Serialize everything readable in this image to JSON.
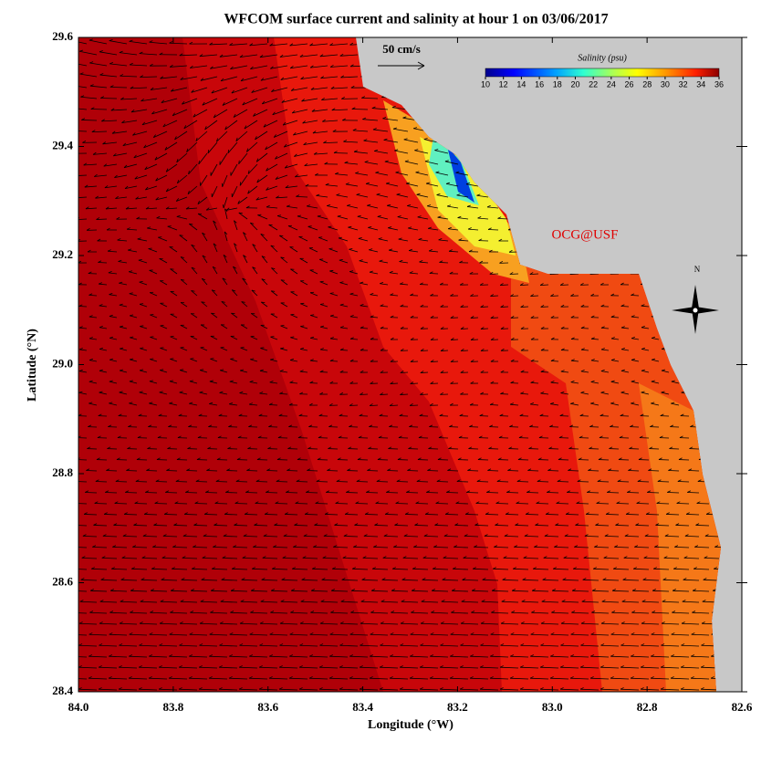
{
  "map": {
    "title": "WFCOM surface current and salinity at hour 1 on 03/06/2017",
    "xlabel": "Longitude (°W)",
    "ylabel": "Latitude (°N)",
    "xlim": [
      84.0,
      82.6
    ],
    "ylim": [
      28.4,
      29.6
    ],
    "xticks": [
      {
        "value": 84.0,
        "label": "84.0"
      },
      83.8,
      83.6,
      83.4,
      83.2,
      {
        "value": 83.0,
        "label": "83.0"
      },
      82.8,
      82.6
    ],
    "yticks": [
      28.4,
      28.6,
      28.8,
      {
        "value": 29.0,
        "label": "29.0"
      },
      29.2,
      29.4,
      29.6
    ],
    "colorbar": {
      "label": "Salinity (psu)",
      "lim": [
        10,
        36
      ],
      "ticks": [
        10,
        12,
        14,
        16,
        18,
        20,
        22,
        24,
        26,
        28,
        30,
        32,
        34,
        36
      ]
    },
    "scale_label": "50 cm/s",
    "credit": "OCG@USF",
    "north": "N"
  }
}
